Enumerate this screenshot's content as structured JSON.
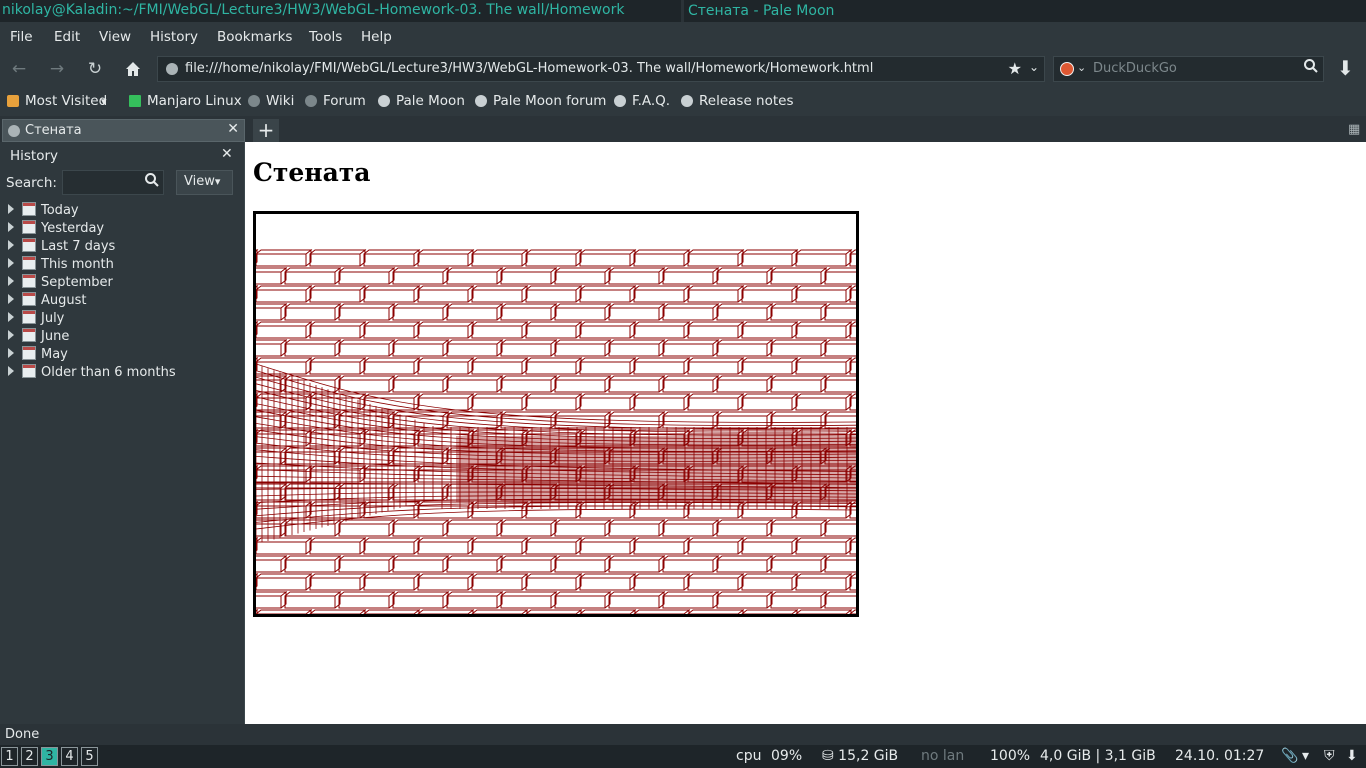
{
  "window": {
    "terminal_title": "nikolay@Kaladin:~/FMI/WebGL/Lecture3/HW3/WebGL-Homework-03. The wall/Homework",
    "browser_title": "Стената - Pale Moon"
  },
  "menu": {
    "file": "File",
    "edit": "Edit",
    "view": "View",
    "history": "History",
    "bookmarks": "Bookmarks",
    "tools": "Tools",
    "help": "Help"
  },
  "nav": {
    "url": "file:///home/nikolay/FMI/WebGL/Lecture3/HW3/WebGL-Homework-03. The wall/Homework/Homework.html",
    "search_placeholder": "DuckDuckGo"
  },
  "bookmarks": [
    {
      "label": "Most Visited"
    },
    {
      "label": "Manjaro Linux"
    },
    {
      "label": "Wiki"
    },
    {
      "label": "Forum"
    },
    {
      "label": "Pale Moon"
    },
    {
      "label": "Pale Moon forum"
    },
    {
      "label": "F.A.Q."
    },
    {
      "label": "Release notes"
    }
  ],
  "tab": {
    "label": "Стената"
  },
  "sidebar": {
    "title": "History",
    "search_label": "Search:",
    "view_label": "View",
    "items": [
      {
        "label": "Today"
      },
      {
        "label": "Yesterday"
      },
      {
        "label": "Last 7 days"
      },
      {
        "label": "This month"
      },
      {
        "label": "September"
      },
      {
        "label": "August"
      },
      {
        "label": "July"
      },
      {
        "label": "June"
      },
      {
        "label": "May"
      },
      {
        "label": "Older than 6 months"
      }
    ]
  },
  "page": {
    "heading": "Стената"
  },
  "status": {
    "text": "Done"
  },
  "taskbar": {
    "workspaces": [
      "1",
      "2",
      "3",
      "4",
      "5"
    ],
    "active_workspace": "3",
    "cpu_label": "cpu",
    "cpu_value": "09%",
    "disk": "⛁ 15,2 GiB",
    "lan": "no lan",
    "battery": "100%",
    "memory": "4,0 GiB | 3,1 GiB",
    "clock": "24.10. 01:27"
  },
  "colors": {
    "accent": "#2fb5a3",
    "brick_stroke": "#8b0000"
  }
}
